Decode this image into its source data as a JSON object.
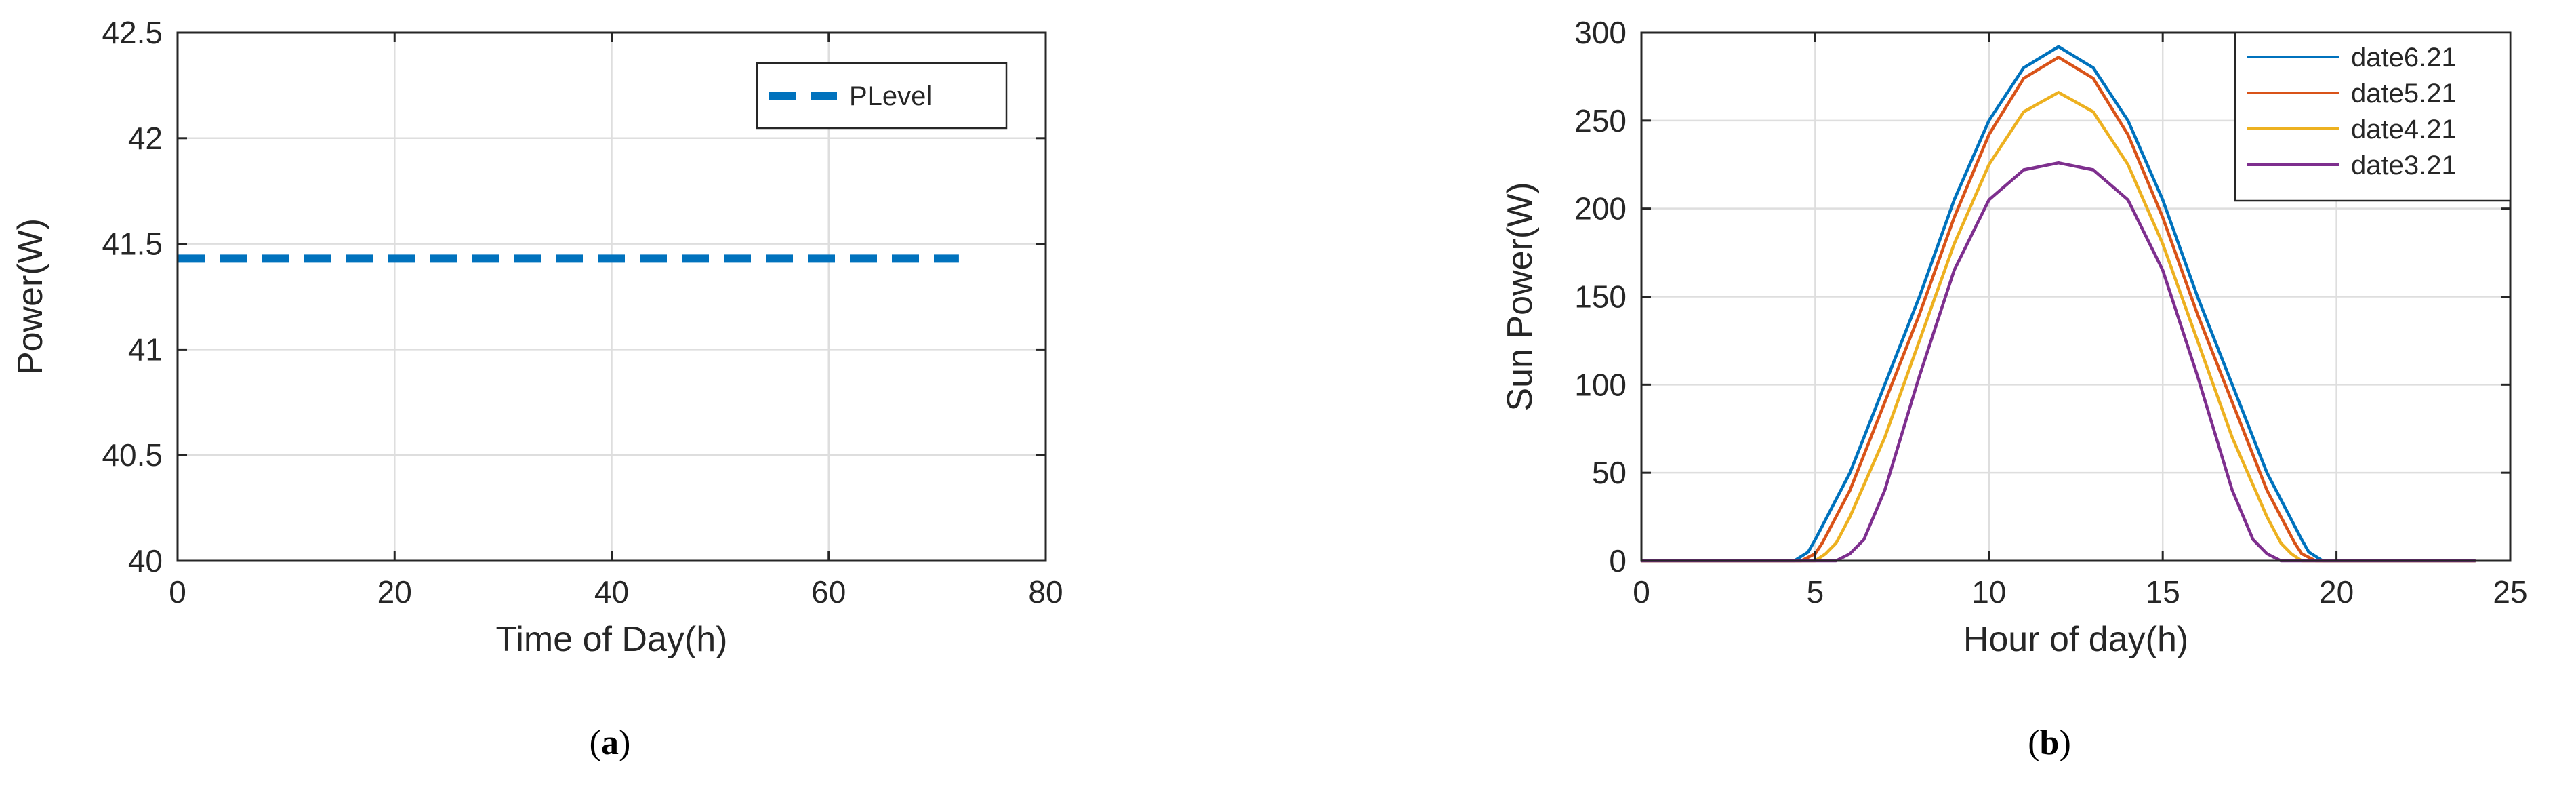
{
  "chart_data": [
    {
      "type": "line",
      "panel_label": "(a)",
      "panel_letter": "a",
      "xlabel": "Time of Day(h)",
      "ylabel": "Power(W)",
      "xlim": [
        0,
        80
      ],
      "ylim": [
        40,
        42.5
      ],
      "x_ticks": [
        0,
        20,
        40,
        60,
        80
      ],
      "y_ticks": [
        40,
        40.5,
        41,
        41.5,
        42,
        42.5
      ],
      "grid": true,
      "legend_position": "top-right",
      "series": [
        {
          "name": "PLevel",
          "color": "#0072BD",
          "style": "dashed",
          "x": [
            0,
            72
          ],
          "y": [
            41.43,
            41.43
          ]
        }
      ]
    },
    {
      "type": "line",
      "panel_label": "(b)",
      "panel_letter": "b",
      "xlabel": "Hour of day(h)",
      "ylabel": "Sun Power(W)",
      "xlim": [
        0,
        25
      ],
      "ylim": [
        0,
        300
      ],
      "x_ticks": [
        0,
        5,
        10,
        15,
        20,
        25
      ],
      "y_ticks": [
        0,
        50,
        100,
        150,
        200,
        250,
        300
      ],
      "grid": true,
      "legend_position": "top-right",
      "series": [
        {
          "name": "date6.21",
          "color": "#0072BD",
          "x": [
            0,
            4.4,
            4.8,
            5.0,
            6,
            7,
            8,
            9,
            10,
            11,
            12,
            13,
            14,
            15,
            16,
            17,
            18,
            19.0,
            19.2,
            19.6,
            24
          ],
          "y": [
            0,
            0,
            5,
            12,
            50,
            100,
            150,
            205,
            250,
            280,
            292,
            280,
            250,
            205,
            150,
            100,
            50,
            12,
            5,
            0,
            0
          ]
        },
        {
          "name": "date5.21",
          "color": "#D95319",
          "x": [
            0,
            4.6,
            5.0,
            5.2,
            6,
            7,
            8,
            9,
            10,
            11,
            12,
            13,
            14,
            15,
            16,
            17,
            18,
            18.8,
            19.0,
            19.4,
            24
          ],
          "y": [
            0,
            0,
            4,
            10,
            40,
            90,
            140,
            195,
            242,
            274,
            286,
            274,
            242,
            195,
            140,
            90,
            40,
            10,
            4,
            0,
            0
          ]
        },
        {
          "name": "date4.21",
          "color": "#EDB120",
          "x": [
            0,
            5.0,
            5.3,
            5.6,
            6,
            7,
            8,
            9,
            10,
            11,
            12,
            13,
            14,
            15,
            16,
            17,
            18,
            18.4,
            18.7,
            19.0,
            24
          ],
          "y": [
            0,
            0,
            4,
            10,
            25,
            70,
            125,
            180,
            225,
            255,
            266,
            255,
            225,
            180,
            125,
            70,
            25,
            10,
            4,
            0,
            0
          ]
        },
        {
          "name": "date3.21",
          "color": "#7E2F8E",
          "x": [
            0,
            5.6,
            6.0,
            6.4,
            7,
            8,
            9,
            10,
            11,
            12,
            13,
            14,
            15,
            16,
            17,
            17.6,
            18.0,
            18.4,
            24
          ],
          "y": [
            0,
            0,
            4,
            12,
            40,
            105,
            165,
            205,
            222,
            226,
            222,
            205,
            165,
            105,
            40,
            12,
            4,
            0,
            0
          ]
        }
      ]
    }
  ]
}
